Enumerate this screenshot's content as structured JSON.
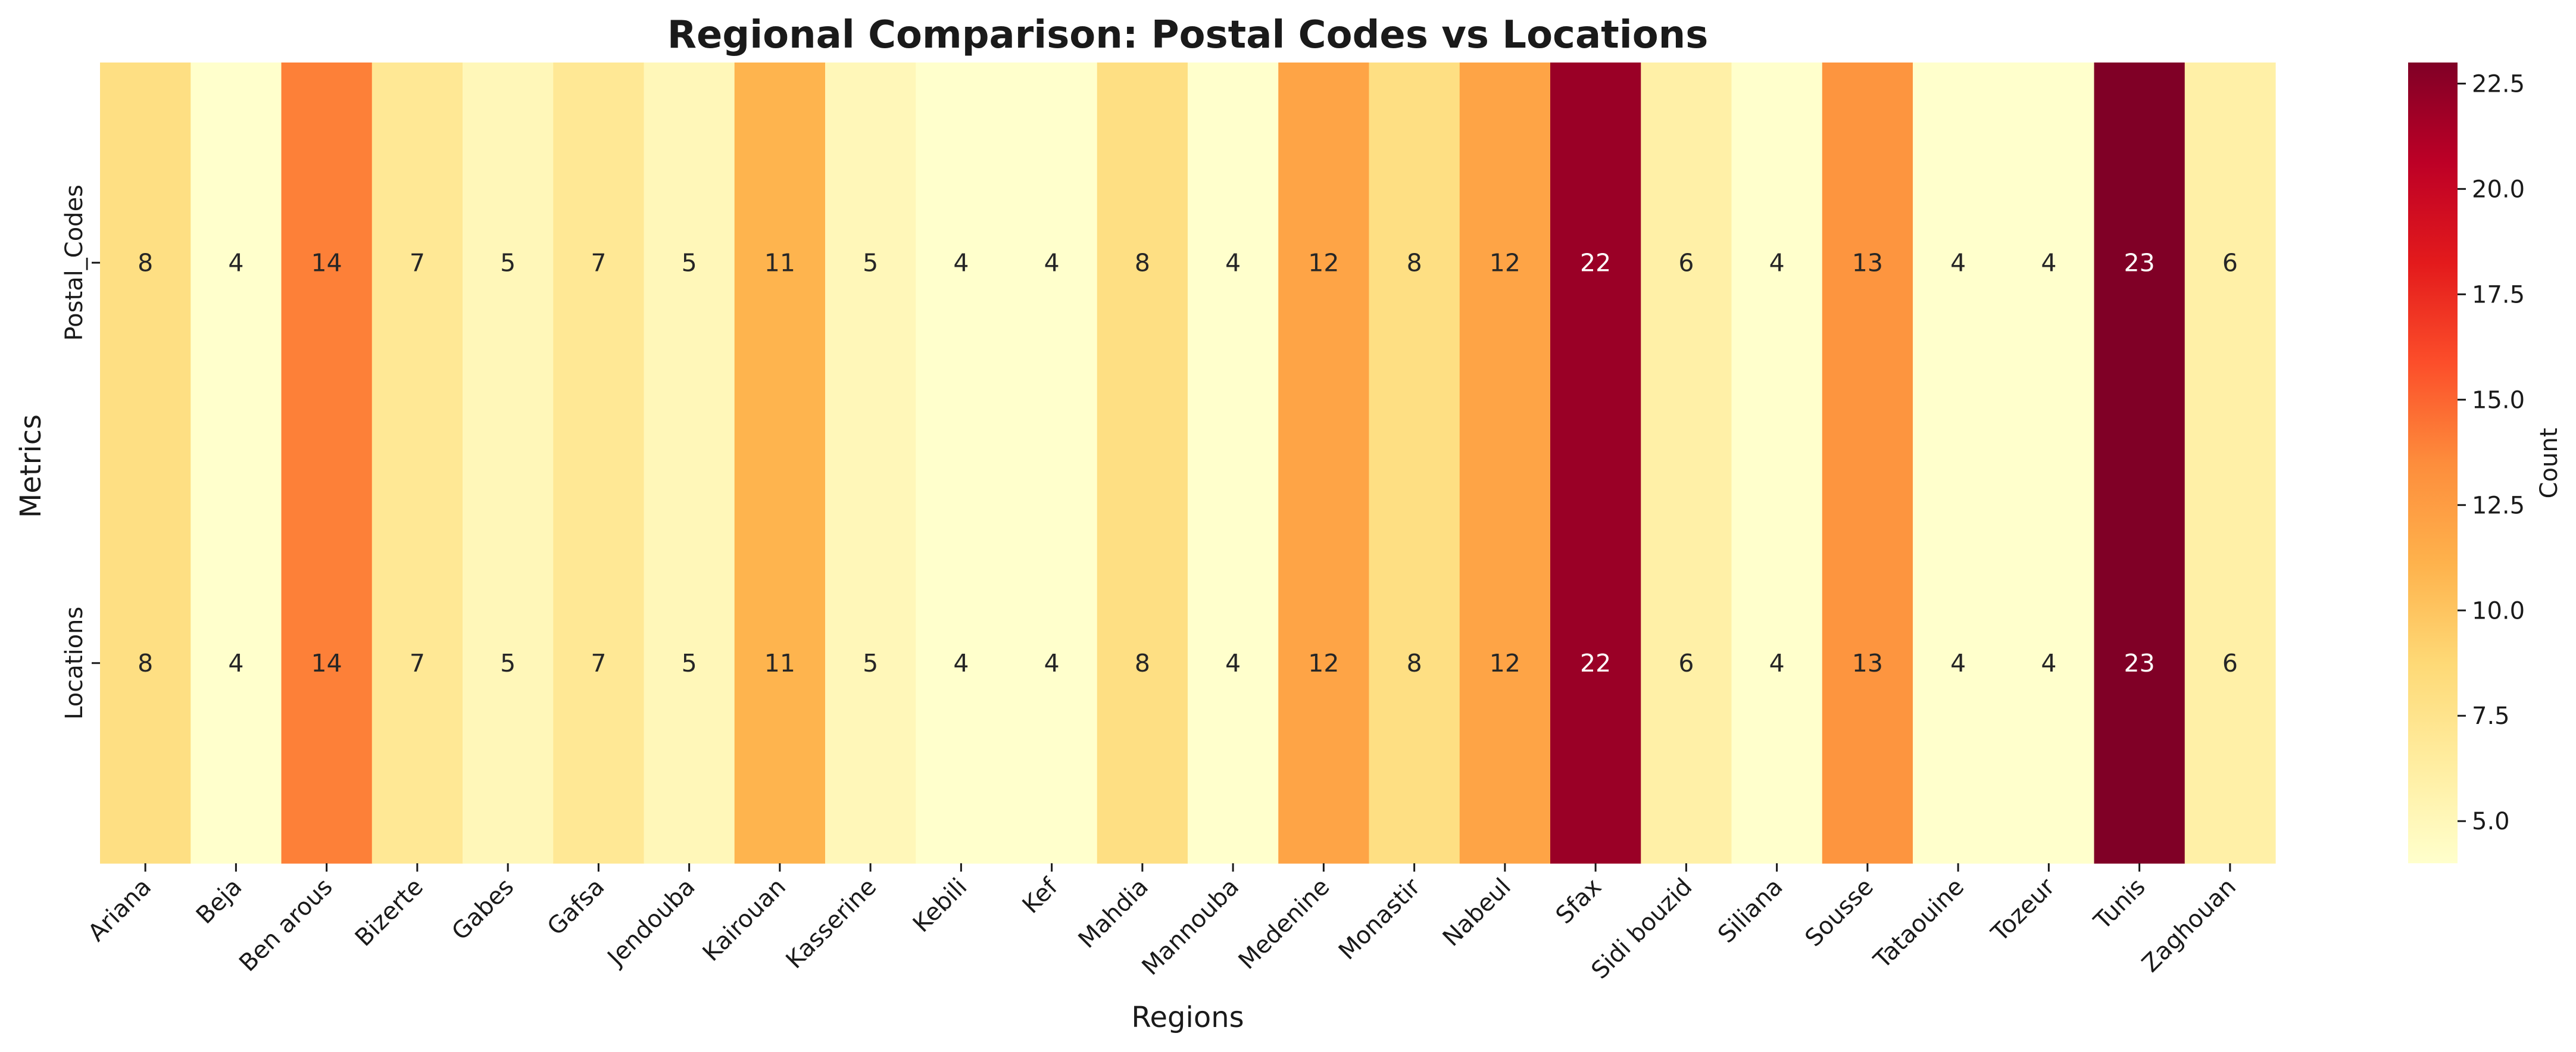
{
  "chart_data": {
    "type": "heatmap",
    "title": "Regional Comparison: Postal Codes vs Locations",
    "xlabel": "Regions",
    "ylabel": "Metrics",
    "categories": [
      "Ariana",
      "Beja",
      "Ben arous",
      "Bizerte",
      "Gabes",
      "Gafsa",
      "Jendouba",
      "Kairouan",
      "Kasserine",
      "Kebili",
      "Kef",
      "Mahdia",
      "Mannouba",
      "Medenine",
      "Monastir",
      "Nabeul",
      "Sfax",
      "Sidi bouzid",
      "Siliana",
      "Sousse",
      "Tataouine",
      "Tozeur",
      "Tunis",
      "Zaghouan"
    ],
    "rows": [
      "Postal_Codes",
      "Locations"
    ],
    "series": [
      {
        "name": "Postal_Codes",
        "values": [
          8,
          4,
          14,
          7,
          5,
          7,
          5,
          11,
          5,
          4,
          4,
          8,
          4,
          12,
          8,
          12,
          22,
          6,
          4,
          13,
          4,
          4,
          23,
          6
        ]
      },
      {
        "name": "Locations",
        "values": [
          8,
          4,
          14,
          7,
          5,
          7,
          5,
          11,
          5,
          4,
          4,
          8,
          4,
          12,
          8,
          12,
          22,
          6,
          4,
          13,
          4,
          4,
          23,
          6
        ]
      }
    ],
    "colorbar": {
      "label": "Count",
      "range": [
        4,
        23
      ],
      "ticks": [
        "5.0",
        "7.5",
        "10.0",
        "12.5",
        "15.0",
        "17.5",
        "20.0",
        "22.5"
      ],
      "colormap": "YlOrRd"
    },
    "annotations": true,
    "grid": false
  }
}
